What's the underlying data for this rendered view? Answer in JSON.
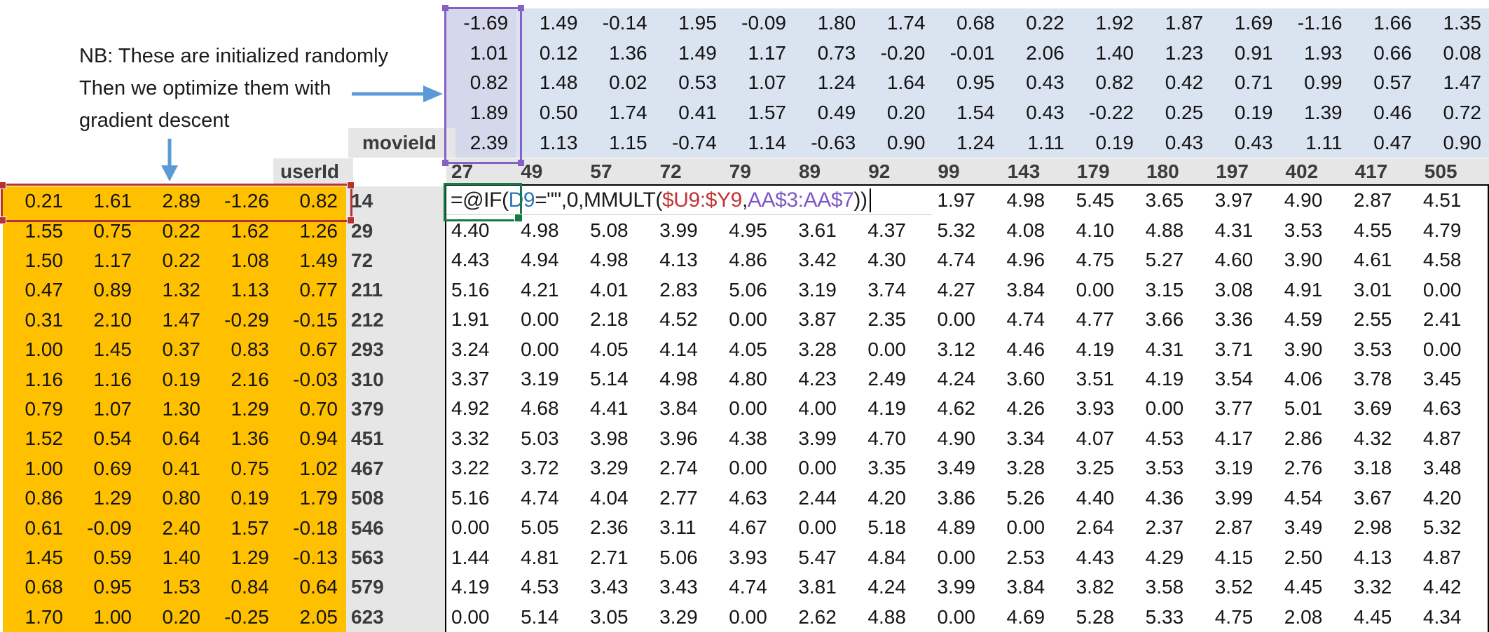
{
  "annotation": {
    "line1": "NB: These are initialized randomly",
    "line2": "Then we optimize them with",
    "line3": "gradient descent"
  },
  "labels": {
    "movie_id": "movieId",
    "user_id": "userId"
  },
  "colors": {
    "orange_fill": "#FFC000",
    "blue_fill": "#DAE3F0",
    "blue_selected_fill": "#D5D7EB",
    "gray_fill": "#E7E6E6",
    "header_text": "#3B3B3B",
    "arrow_blue": "#5B9BD5",
    "active_cell_green": "#107C41",
    "range_red": "#B63331",
    "range_purple": "#8661C5"
  },
  "movie_ids": [
    "27",
    "49",
    "57",
    "72",
    "79",
    "89",
    "92",
    "99",
    "143",
    "179",
    "180",
    "197",
    "402",
    "417",
    "505"
  ],
  "user_ids": [
    "14",
    "29",
    "72",
    "211",
    "212",
    "293",
    "310",
    "379",
    "451",
    "467",
    "508",
    "546",
    "563",
    "579",
    "623"
  ],
  "movie_factors": {
    "rows": [
      [
        "-1.69",
        "1.49",
        "-0.14",
        "1.95",
        "-0.09",
        "1.80",
        "1.74",
        "0.68",
        "0.22",
        "1.92",
        "1.87",
        "1.69",
        "-1.16",
        "1.66",
        "1.35"
      ],
      [
        "1.01",
        "0.12",
        "1.36",
        "1.49",
        "1.17",
        "0.73",
        "-0.20",
        "-0.01",
        "2.06",
        "1.40",
        "1.23",
        "0.91",
        "1.93",
        "0.66",
        "0.08"
      ],
      [
        "0.82",
        "1.48",
        "0.02",
        "0.53",
        "1.07",
        "1.24",
        "1.64",
        "0.95",
        "0.43",
        "0.82",
        "0.42",
        "0.71",
        "0.99",
        "0.57",
        "1.47"
      ],
      [
        "1.89",
        "0.50",
        "1.74",
        "0.41",
        "1.57",
        "0.49",
        "0.20",
        "1.54",
        "0.43",
        "-0.22",
        "0.25",
        "0.19",
        "1.39",
        "0.46",
        "0.72"
      ],
      [
        "2.39",
        "1.13",
        "1.15",
        "-0.74",
        "1.14",
        "-0.63",
        "0.90",
        "1.24",
        "1.11",
        "0.19",
        "0.43",
        "0.43",
        "1.11",
        "0.47",
        "0.90"
      ]
    ]
  },
  "user_factors": {
    "rows": [
      [
        "0.21",
        "1.61",
        "2.89",
        "-1.26",
        "0.82"
      ],
      [
        "1.55",
        "0.75",
        "0.22",
        "1.62",
        "1.26"
      ],
      [
        "1.50",
        "1.17",
        "0.22",
        "1.08",
        "1.49"
      ],
      [
        "0.47",
        "0.89",
        "1.32",
        "1.13",
        "0.77"
      ],
      [
        "0.31",
        "2.10",
        "1.47",
        "-0.29",
        "-0.15"
      ],
      [
        "1.00",
        "1.45",
        "0.37",
        "0.83",
        "0.67"
      ],
      [
        "1.16",
        "1.16",
        "0.19",
        "2.16",
        "-0.03"
      ],
      [
        "0.79",
        "1.07",
        "1.30",
        "1.29",
        "0.70"
      ],
      [
        "1.52",
        "0.54",
        "0.64",
        "1.36",
        "0.94"
      ],
      [
        "1.00",
        "0.69",
        "0.41",
        "0.75",
        "1.02"
      ],
      [
        "0.86",
        "1.29",
        "0.80",
        "0.19",
        "1.79"
      ],
      [
        "0.61",
        "-0.09",
        "2.40",
        "1.57",
        "-0.18"
      ],
      [
        "1.45",
        "0.59",
        "1.40",
        "1.29",
        "-0.13"
      ],
      [
        "0.68",
        "0.95",
        "1.53",
        "0.84",
        "0.64"
      ],
      [
        "1.70",
        "1.00",
        "0.20",
        "-0.25",
        "2.05"
      ]
    ]
  },
  "formula": {
    "full": "=@IF(D9=\"\",0,MMULT($U9:$Y9,AA$3:AA$7))",
    "segments": [
      {
        "text": "=@IF(",
        "color": "#1d1d1d"
      },
      {
        "text": "D9",
        "color": "#2e75b6"
      },
      {
        "text": "=\"\",0,MMULT(",
        "color": "#1d1d1d"
      },
      {
        "text": "$U9:$Y9",
        "color": "#c13437"
      },
      {
        "text": ",",
        "color": "#1d1d1d"
      },
      {
        "text": "AA$3:AA$7",
        "color": "#7e57c5"
      },
      {
        "text": "))",
        "color": "#1d1d1d"
      }
    ]
  },
  "predictions": {
    "first_row_values": [
      "1.97",
      "4.98",
      "5.45",
      "3.65",
      "3.97",
      "4.90",
      "2.87",
      "4.51"
    ],
    "rows": [
      [
        "4.40",
        "4.98",
        "5.08",
        "3.99",
        "4.95",
        "3.61",
        "4.37",
        "5.32",
        "4.08",
        "4.10",
        "4.88",
        "4.31",
        "3.53",
        "4.55",
        "4.79"
      ],
      [
        "4.43",
        "4.94",
        "4.98",
        "4.13",
        "4.86",
        "3.42",
        "4.30",
        "4.74",
        "4.96",
        "4.75",
        "5.27",
        "4.60",
        "3.90",
        "4.61",
        "4.58"
      ],
      [
        "5.16",
        "4.21",
        "4.01",
        "2.83",
        "5.06",
        "3.19",
        "3.74",
        "4.27",
        "3.84",
        "0.00",
        "3.15",
        "3.08",
        "4.91",
        "3.01",
        "0.00"
      ],
      [
        "1.91",
        "0.00",
        "2.18",
        "4.52",
        "0.00",
        "3.87",
        "2.35",
        "0.00",
        "4.74",
        "4.77",
        "3.66",
        "3.36",
        "4.59",
        "2.55",
        "2.41"
      ],
      [
        "3.24",
        "0.00",
        "4.05",
        "4.14",
        "4.05",
        "3.28",
        "0.00",
        "3.12",
        "4.46",
        "4.19",
        "4.31",
        "3.71",
        "3.90",
        "3.53",
        "0.00"
      ],
      [
        "3.37",
        "3.19",
        "5.14",
        "4.98",
        "4.80",
        "4.23",
        "2.49",
        "4.24",
        "3.60",
        "3.51",
        "4.19",
        "3.54",
        "4.06",
        "3.78",
        "3.45"
      ],
      [
        "4.92",
        "4.68",
        "4.41",
        "3.84",
        "0.00",
        "4.00",
        "4.19",
        "4.62",
        "4.26",
        "3.93",
        "0.00",
        "3.77",
        "5.01",
        "3.69",
        "4.63"
      ],
      [
        "3.32",
        "5.03",
        "3.98",
        "3.96",
        "4.38",
        "3.99",
        "4.70",
        "4.90",
        "3.34",
        "4.07",
        "4.53",
        "4.17",
        "2.86",
        "4.32",
        "4.87"
      ],
      [
        "3.22",
        "3.72",
        "3.29",
        "2.74",
        "0.00",
        "0.00",
        "3.35",
        "3.49",
        "3.28",
        "3.25",
        "3.53",
        "3.19",
        "2.76",
        "3.18",
        "3.48"
      ],
      [
        "5.16",
        "4.74",
        "4.04",
        "2.77",
        "4.63",
        "2.44",
        "4.20",
        "3.86",
        "5.26",
        "4.40",
        "4.36",
        "3.99",
        "4.54",
        "3.67",
        "4.20"
      ],
      [
        "0.00",
        "5.05",
        "2.36",
        "3.11",
        "4.67",
        "0.00",
        "5.18",
        "4.89",
        "0.00",
        "2.64",
        "2.37",
        "2.87",
        "3.49",
        "2.98",
        "5.32"
      ],
      [
        "1.44",
        "4.81",
        "2.71",
        "5.06",
        "3.93",
        "5.47",
        "4.84",
        "0.00",
        "2.53",
        "4.43",
        "4.29",
        "4.15",
        "2.50",
        "4.13",
        "4.87"
      ],
      [
        "4.19",
        "4.53",
        "3.43",
        "3.43",
        "4.74",
        "3.81",
        "4.24",
        "3.99",
        "3.84",
        "3.82",
        "3.58",
        "3.52",
        "4.45",
        "3.32",
        "4.42"
      ],
      [
        "0.00",
        "5.14",
        "3.05",
        "3.29",
        "0.00",
        "2.62",
        "4.88",
        "0.00",
        "4.69",
        "5.28",
        "5.33",
        "4.75",
        "2.08",
        "4.45",
        "4.34"
      ]
    ]
  }
}
